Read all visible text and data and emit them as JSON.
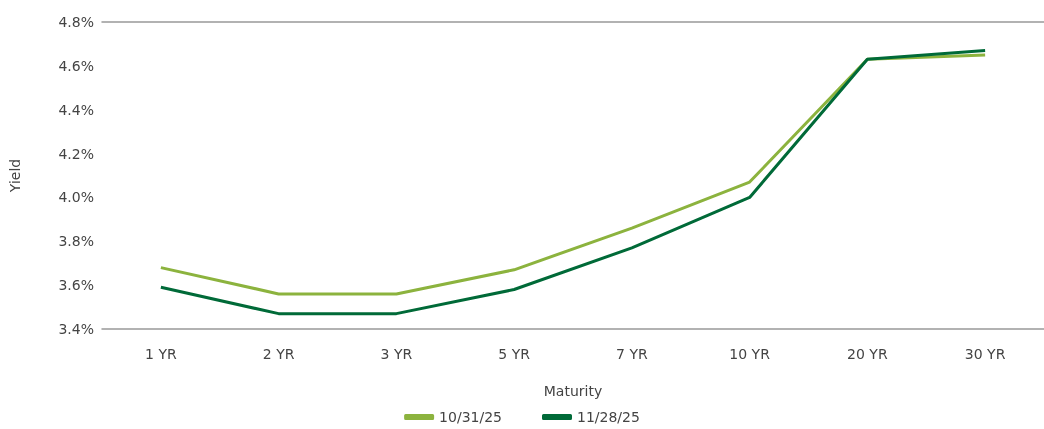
{
  "chart_data": {
    "type": "line",
    "xlabel": "Maturity",
    "ylabel": "Yield",
    "categories": [
      "1 YR",
      "2 YR",
      "3 YR",
      "5 YR",
      "7 YR",
      "10 YR",
      "20 YR",
      "30 YR"
    ],
    "series": [
      {
        "name": "10/31/25",
        "color": "#8cb33e",
        "values": [
          3.68,
          3.56,
          3.56,
          3.67,
          3.86,
          4.07,
          4.63,
          4.65
        ]
      },
      {
        "name": "11/28/25",
        "color": "#006a38",
        "values": [
          3.59,
          3.47,
          3.47,
          3.58,
          3.77,
          4.0,
          4.63,
          4.67
        ]
      }
    ],
    "ylim": [
      3.4,
      4.8
    ],
    "yticks": [
      {
        "value": 3.4,
        "label": "3.4%"
      },
      {
        "value": 3.6,
        "label": "3.6%"
      },
      {
        "value": 3.8,
        "label": "3.8%"
      },
      {
        "value": 4.0,
        "label": "4.0%"
      },
      {
        "value": 4.2,
        "label": "4.2%"
      },
      {
        "value": 4.4,
        "label": "4.4%"
      },
      {
        "value": 4.6,
        "label": "4.6%"
      },
      {
        "value": 4.8,
        "label": "4.8%"
      }
    ],
    "legend": "bottom",
    "marker": "none",
    "line_style": "solid"
  }
}
